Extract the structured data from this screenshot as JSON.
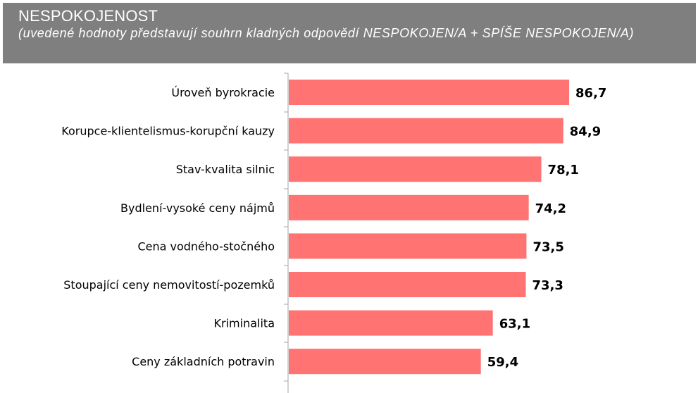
{
  "header": {
    "title": "NESPOKOJENOST",
    "subtitle": "(uvedené hodnoty představují souhrn kladných odpovědí NESPOKOJEN/A + SPÍŠE NESPOKOJEN/A)"
  },
  "colors": {
    "bar": "#ff7473",
    "header_bg": "#7f7f7f",
    "axis": "#a6a6a6"
  },
  "chart_data": {
    "type": "bar",
    "orientation": "horizontal",
    "title": "NESPOKOJENOST",
    "subtitle": "(uvedené hodnoty představují souhrn kladných odpovědí NESPOKOJEN/A + SPÍŠE NESPOKOJEN/A)",
    "categories": [
      "Úroveň byrokracie",
      "Korupce-klientelismus-korupční kauzy",
      "Stav-kvalita silnic",
      "Bydlení-vysoké ceny nájmů",
      "Cena vodného-stočného",
      "Stoupající ceny nemovitostí-pozemků",
      "Kriminalita",
      "Ceny základních potravin"
    ],
    "values": [
      86.7,
      84.9,
      78.1,
      74.2,
      73.5,
      73.3,
      63.1,
      59.4
    ],
    "value_labels": [
      "86,7",
      "84,9",
      "78,1",
      "74,2",
      "73,5",
      "73,3",
      "63,1",
      "59,4"
    ],
    "xlim": [
      0,
      100
    ],
    "grid": false,
    "legend": "none"
  }
}
